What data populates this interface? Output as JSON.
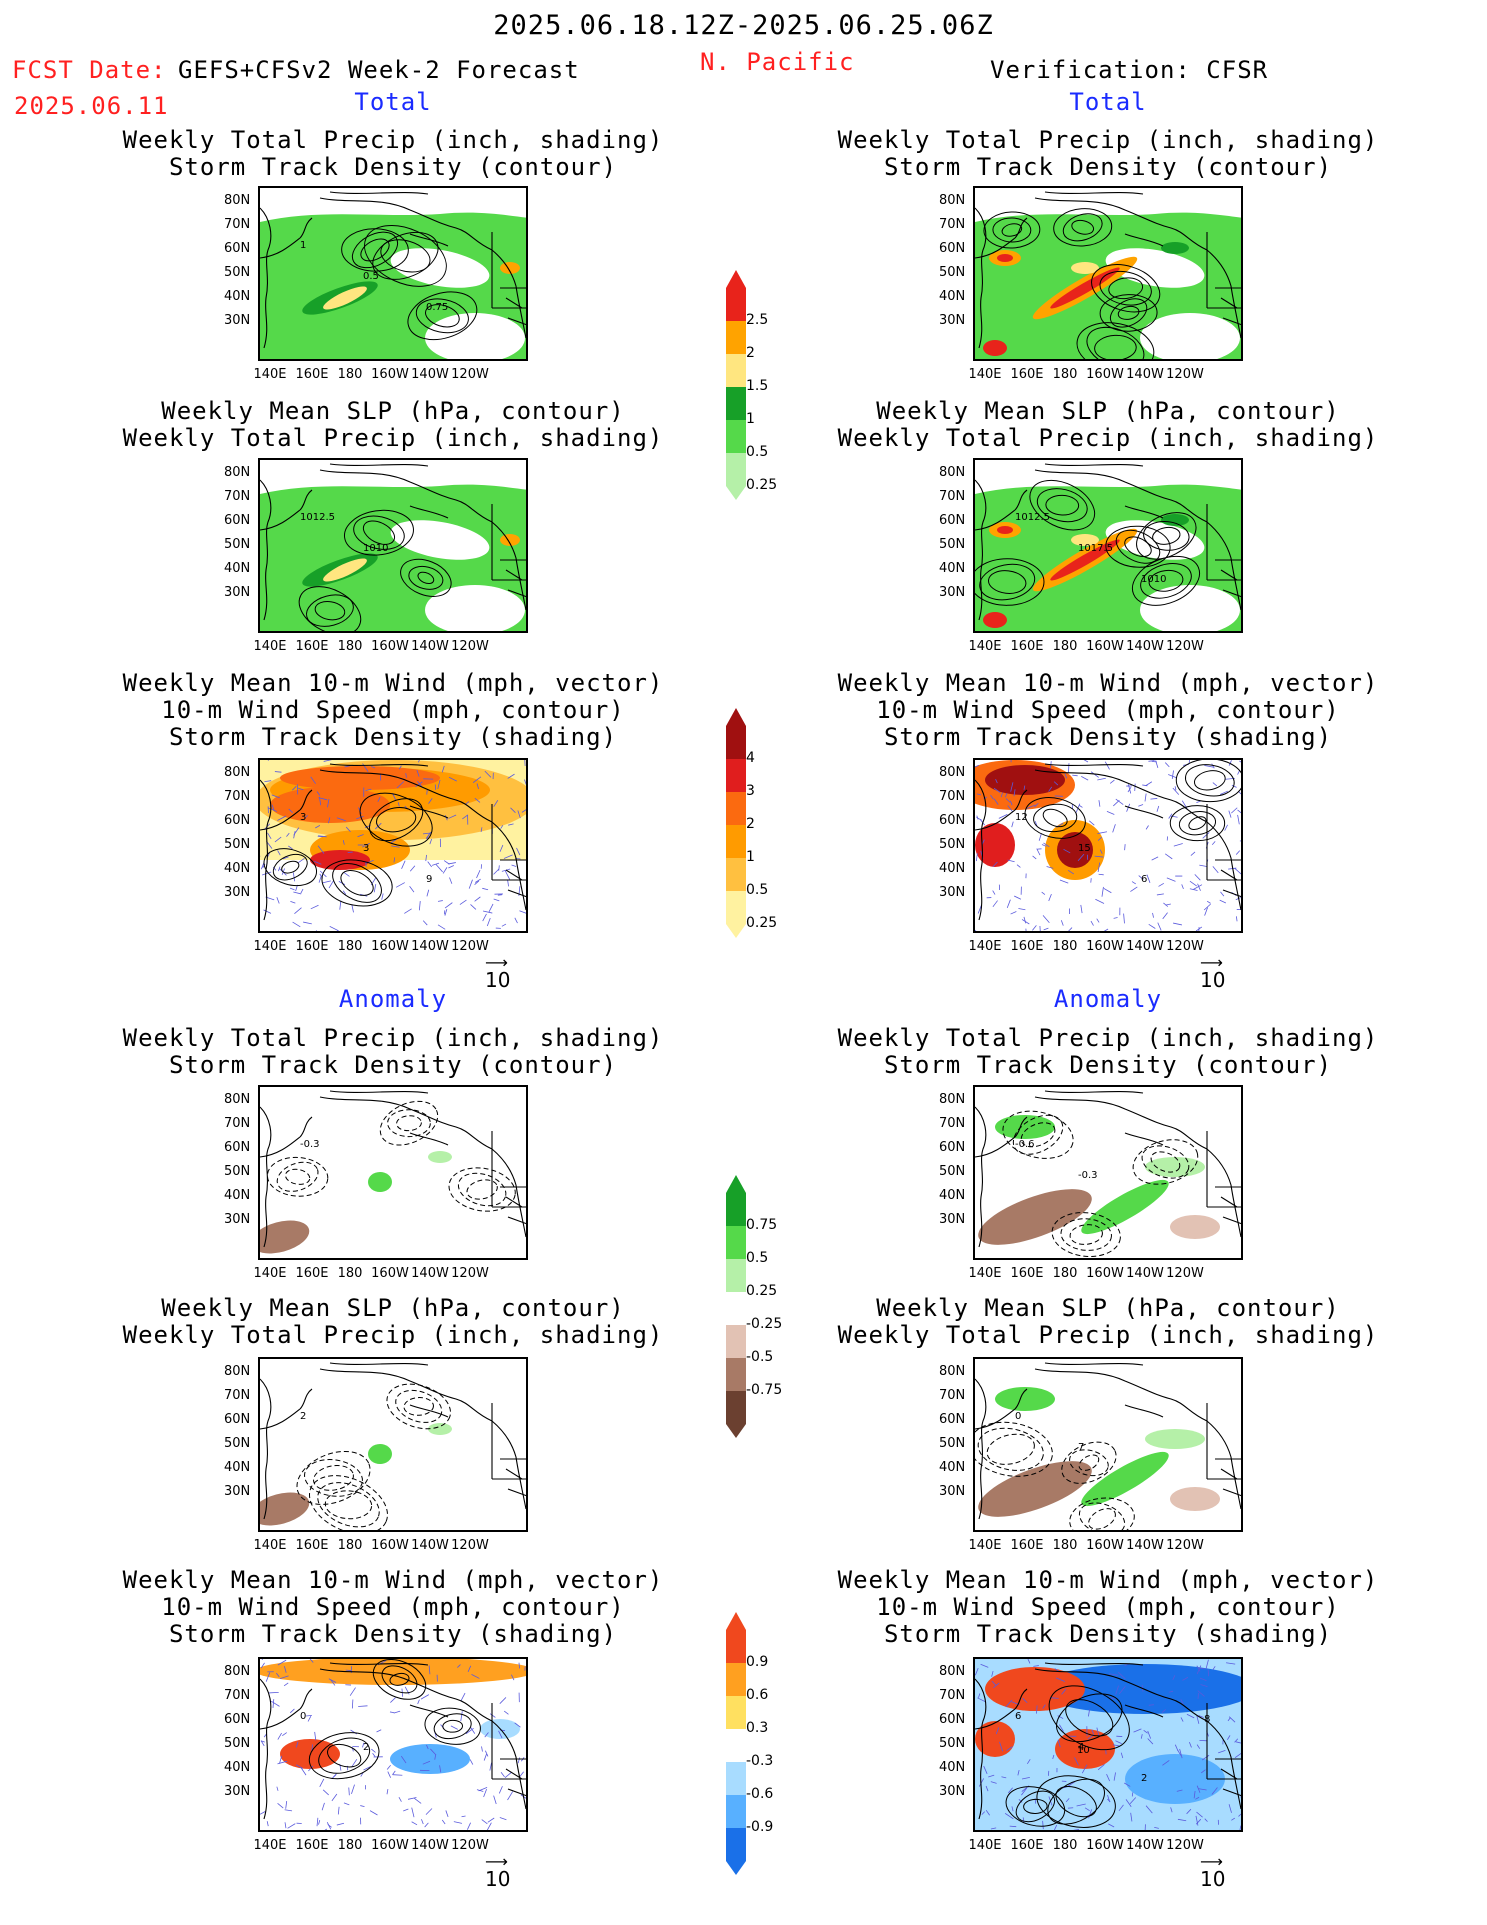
{
  "header": {
    "date_range": "2025.06.18.12Z-2025.06.25.06Z",
    "fcst_label": "FCST Date:",
    "model": "GEFS+CFSv2 Week-2 Forecast",
    "fcst_date": "2025.06.11",
    "region": "N. Pacific",
    "verification": "Verification: CFSR"
  },
  "sections": {
    "total": "Total",
    "anomaly": "Anomaly"
  },
  "titles": {
    "precip_storm_1": "Weekly Total Precip (inch, shading)",
    "precip_storm_2": "Storm Track Density (contour)",
    "slp_precip_1": "Weekly Mean SLP (hPa, contour)",
    "slp_precip_2": "Weekly Total Precip (inch, shading)",
    "wind_1": "Weekly Mean 10-m Wind (mph, vector)",
    "wind_2": "10-m Wind Speed (mph, contour)",
    "wind_3": "Storm Track Density (shading)"
  },
  "axes": {
    "lat_ticks": [
      "80N",
      "70N",
      "60N",
      "50N",
      "40N",
      "30N"
    ],
    "lon_ticks": [
      "140E",
      "160E",
      "180",
      "160W",
      "140W",
      "120W"
    ]
  },
  "vector_ref": "10",
  "map_labels": {
    "l1": [
      "1",
      "0.5",
      "0.75"
    ],
    "l2": [
      "1012.5",
      "1010"
    ],
    "l3": [
      "3",
      "3",
      "9"
    ],
    "r2": [
      "1012.5",
      "1017.5",
      "1010"
    ],
    "r3": [
      "12",
      "15",
      "6"
    ],
    "la1": [
      "-0.3"
    ],
    "la2": [
      "2"
    ],
    "la3": [
      "0",
      "2"
    ],
    "ra1": [
      "-0.6",
      "-0.3"
    ],
    "ra2": [
      "0",
      "7"
    ],
    "ra3": [
      "6",
      "4",
      "2",
      "8",
      "10"
    ]
  },
  "colorbars": {
    "precip_total": {
      "labels": [
        "2.5",
        "2",
        "1.5",
        "1",
        "0.5",
        "0.25"
      ],
      "colors": [
        "#e8231b",
        "#ffa300",
        "#ffe680",
        "#17a028",
        "#55d94a",
        "#b5f0a8"
      ]
    },
    "storm_total": {
      "labels": [
        "4",
        "3",
        "2",
        "1",
        "0.5",
        "0.25"
      ],
      "colors": [
        "#a01010",
        "#e01e1e",
        "#fb6a10",
        "#ff9b00",
        "#ffc040",
        "#fff2a0"
      ]
    },
    "precip_anom": {
      "labels": [
        "0.75",
        "0.5",
        "0.25",
        "-0.25",
        "-0.5",
        "-0.75"
      ],
      "colors": [
        "#17a028",
        "#55d94a",
        "#b5f0a8",
        "#ffffff",
        "#e2c2b4",
        "#a87a66",
        "#6b4030"
      ]
    },
    "storm_anom": {
      "labels": [
        "0.9",
        "0.6",
        "0.3",
        "-0.3",
        "-0.6",
        "-0.9"
      ],
      "colors": [
        "#f0481e",
        "#ffa020",
        "#ffe060",
        "#ffffff",
        "#a8dcff",
        "#58b0ff",
        "#1a70e8"
      ]
    }
  }
}
